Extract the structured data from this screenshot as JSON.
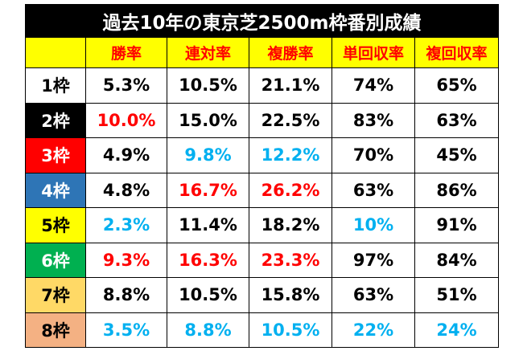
{
  "title": "過去10年の東京芝2500m枠番別成績",
  "headers": [
    "勝率",
    "連対率",
    "複勝率",
    "単回収率",
    "複回収率"
  ],
  "colors": {
    "red": "#ff0000",
    "blue": "#00b0f0",
    "black": "#000000"
  },
  "rows": [
    {
      "label": "1枠",
      "bg": "#ffffff",
      "fg": "#000000",
      "cells": [
        {
          "v": "5.3%",
          "c": "black"
        },
        {
          "v": "10.5%",
          "c": "black"
        },
        {
          "v": "21.1%",
          "c": "black"
        },
        {
          "v": "74%",
          "c": "black"
        },
        {
          "v": "65%",
          "c": "black"
        }
      ]
    },
    {
      "label": "2枠",
      "bg": "#000000",
      "fg": "#ffffff",
      "cells": [
        {
          "v": "10.0%",
          "c": "red"
        },
        {
          "v": "15.0%",
          "c": "black"
        },
        {
          "v": "22.5%",
          "c": "black"
        },
        {
          "v": "83%",
          "c": "black"
        },
        {
          "v": "63%",
          "c": "black"
        }
      ]
    },
    {
      "label": "3枠",
      "bg": "#ff0000",
      "fg": "#ffffff",
      "cells": [
        {
          "v": "4.9%",
          "c": "black"
        },
        {
          "v": "9.8%",
          "c": "blue"
        },
        {
          "v": "12.2%",
          "c": "blue"
        },
        {
          "v": "70%",
          "c": "black"
        },
        {
          "v": "45%",
          "c": "black"
        }
      ]
    },
    {
      "label": "4枠",
      "bg": "#2e75b6",
      "fg": "#ffffff",
      "cells": [
        {
          "v": "4.8%",
          "c": "black"
        },
        {
          "v": "16.7%",
          "c": "red"
        },
        {
          "v": "26.2%",
          "c": "red"
        },
        {
          "v": "63%",
          "c": "black"
        },
        {
          "v": "86%",
          "c": "black"
        }
      ]
    },
    {
      "label": "5枠",
      "bg": "#ffff00",
      "fg": "#000000",
      "cells": [
        {
          "v": "2.3%",
          "c": "blue"
        },
        {
          "v": "11.4%",
          "c": "black"
        },
        {
          "v": "18.2%",
          "c": "black"
        },
        {
          "v": "10%",
          "c": "blue"
        },
        {
          "v": "91%",
          "c": "black"
        }
      ]
    },
    {
      "label": "6枠",
      "bg": "#00b050",
      "fg": "#ffffff",
      "cells": [
        {
          "v": "9.3%",
          "c": "red"
        },
        {
          "v": "16.3%",
          "c": "red"
        },
        {
          "v": "23.3%",
          "c": "red"
        },
        {
          "v": "97%",
          "c": "black"
        },
        {
          "v": "84%",
          "c": "black"
        }
      ]
    },
    {
      "label": "7枠",
      "bg": "#ffd966",
      "fg": "#000000",
      "cells": [
        {
          "v": "8.8%",
          "c": "black"
        },
        {
          "v": "10.5%",
          "c": "black"
        },
        {
          "v": "15.8%",
          "c": "black"
        },
        {
          "v": "63%",
          "c": "black"
        },
        {
          "v": "51%",
          "c": "black"
        }
      ]
    },
    {
      "label": "8枠",
      "bg": "#f4b183",
      "fg": "#000000",
      "cells": [
        {
          "v": "3.5%",
          "c": "blue"
        },
        {
          "v": "8.8%",
          "c": "blue"
        },
        {
          "v": "10.5%",
          "c": "blue"
        },
        {
          "v": "22%",
          "c": "blue"
        },
        {
          "v": "24%",
          "c": "blue"
        }
      ]
    }
  ]
}
